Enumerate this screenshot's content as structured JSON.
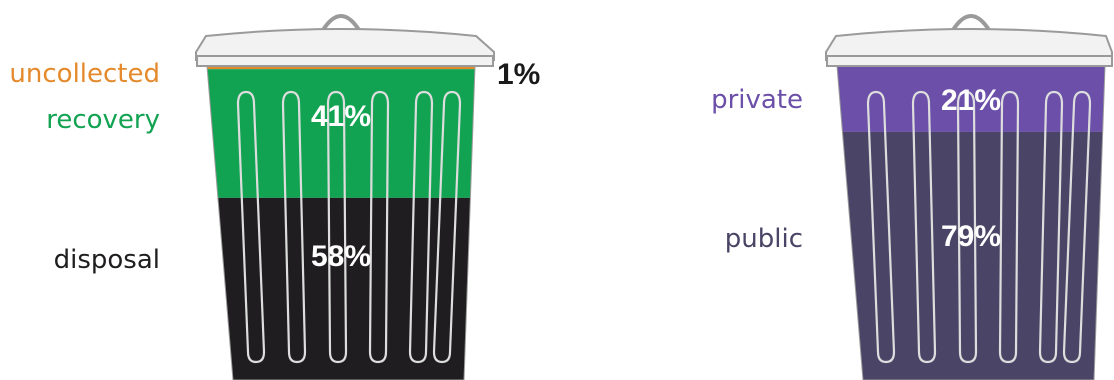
{
  "colors": {
    "uncollected": "#e58a2c",
    "recovery": "#12a352",
    "disposal": "#1f1d1f",
    "private": "#6b4fa8",
    "public": "#4a4566",
    "lid": "#f2f2f2",
    "outline": "#9a9a9a",
    "ridge": "#dddddd"
  },
  "chart_data": [
    {
      "type": "bar",
      "stacked": true,
      "title": "",
      "categories": [
        "uncollected",
        "recovery",
        "disposal"
      ],
      "values": [
        1,
        41,
        58
      ],
      "value_labels": [
        "1%",
        "41%",
        "58%"
      ],
      "unit": "%"
    },
    {
      "type": "bar",
      "stacked": true,
      "title": "",
      "categories": [
        "private",
        "public"
      ],
      "values": [
        21,
        79
      ],
      "value_labels": [
        "21%",
        "79%"
      ],
      "unit": "%"
    }
  ]
}
